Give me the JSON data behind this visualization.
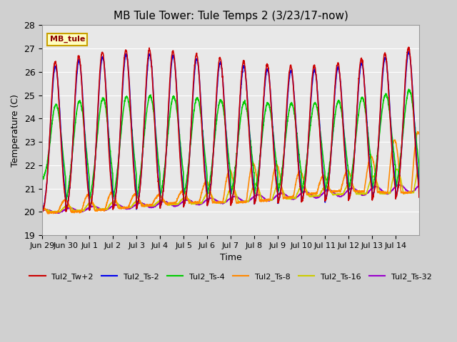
{
  "title": "MB Tule Tower: Tule Temps 2 (3/23/17-now)",
  "xlabel": "Time",
  "ylabel": "Temperature (C)",
  "ylim": [
    19.0,
    28.0
  ],
  "yticks": [
    19.0,
    20.0,
    21.0,
    22.0,
    23.0,
    24.0,
    25.0,
    26.0,
    27.0,
    28.0
  ],
  "fig_bg_color": "#d0d0d0",
  "plot_bg_color": "#e8e8e8",
  "legend_label": "MB_tule",
  "legend_box_color": "#ffffc0",
  "legend_box_edge": "#c8a000",
  "series": {
    "Tul2_Tw+2": {
      "color": "#cc0000",
      "lw": 1.2
    },
    "Tul2_Ts-2": {
      "color": "#0000ee",
      "lw": 1.2
    },
    "Tul2_Ts-4": {
      "color": "#00cc00",
      "lw": 1.2
    },
    "Tul2_Ts-8": {
      "color": "#ff8800",
      "lw": 1.2
    },
    "Tul2_Ts-16": {
      "color": "#cccc00",
      "lw": 1.2
    },
    "Tul2_Ts-32": {
      "color": "#9900cc",
      "lw": 1.2
    }
  },
  "xtick_labels": [
    "Jun 29",
    "Jun 30",
    "Jul 1",
    "Jul 2",
    "Jul 3",
    "Jul 4",
    "Jul 5",
    "Jul 6",
    "Jul 7",
    "Jul 8",
    "Jul 9",
    "Jul 10",
    "Jul 11",
    "Jul 12",
    "Jul 13",
    "Jul 14"
  ],
  "n_days": 16
}
